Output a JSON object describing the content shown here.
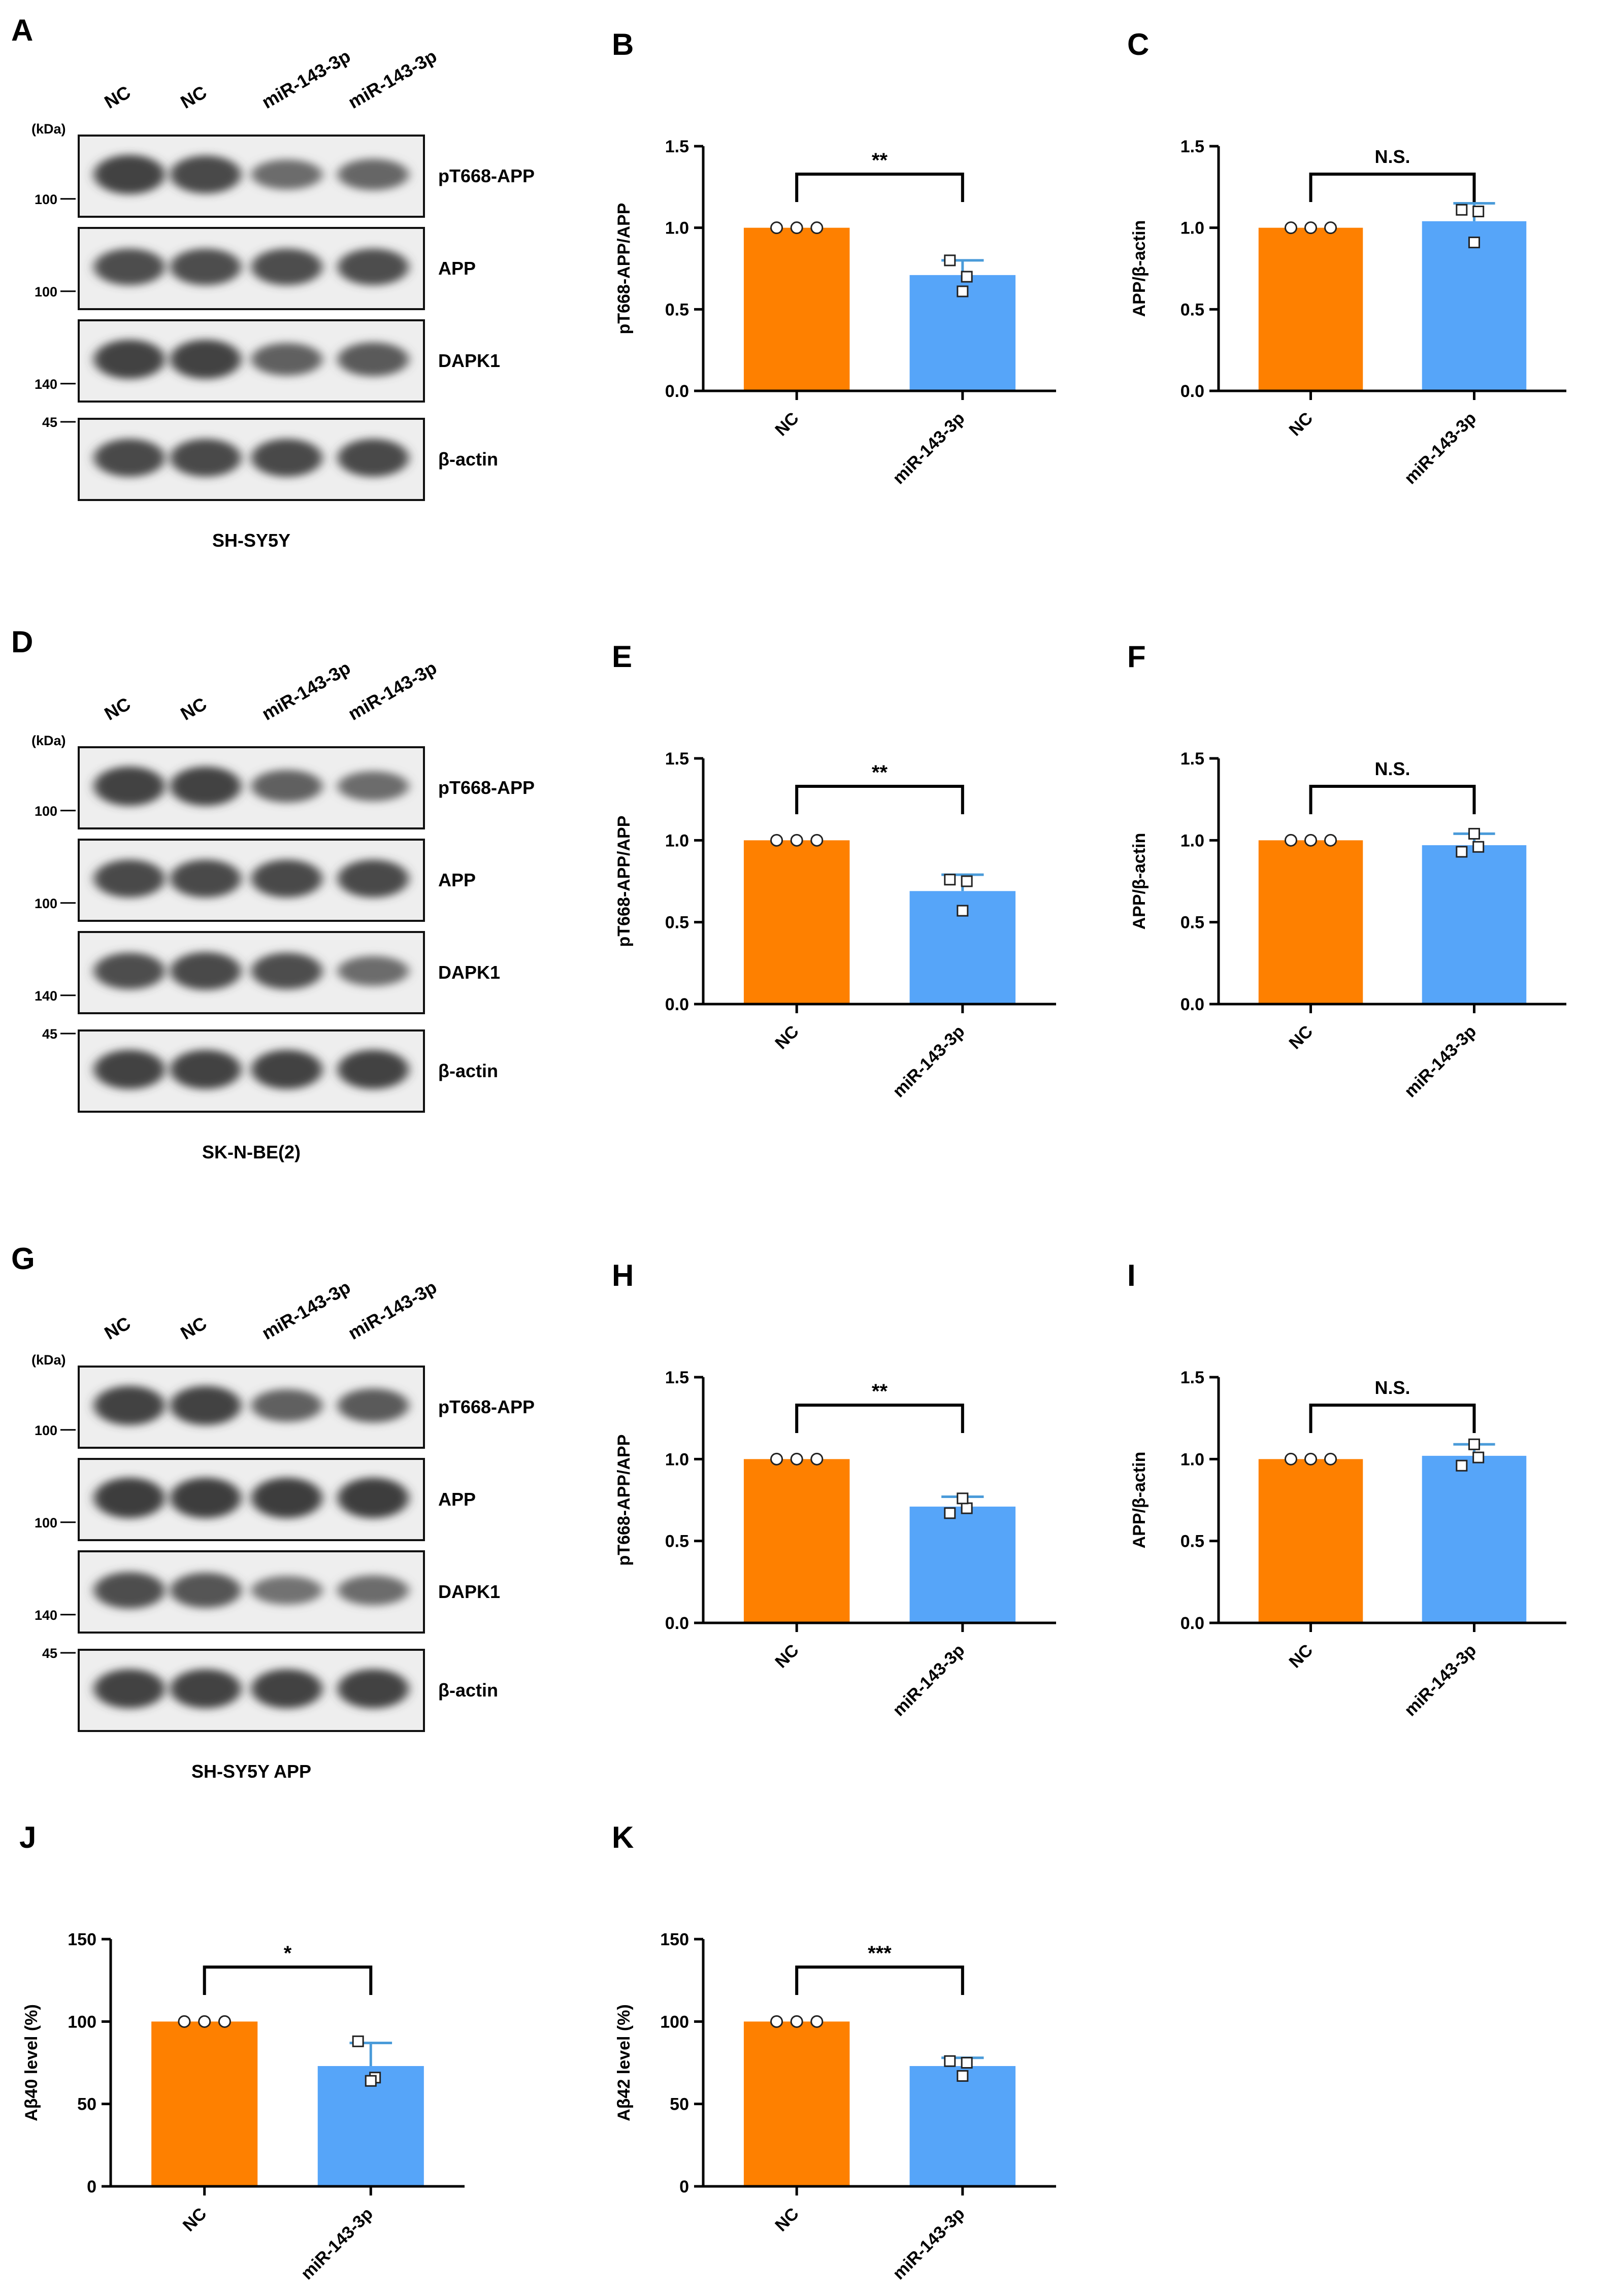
{
  "colors": {
    "nc": "#fe8000",
    "mir": "#56a5f9",
    "axis": "#000000",
    "err": "#4a9bd9",
    "band": "#1c1c1c"
  },
  "blots": [
    {
      "label": "A",
      "cell_line": "SH-SY5Y",
      "lanes": [
        "NC",
        "NC",
        "miR-143-3p",
        "miR-143-3p"
      ],
      "kda_unit": "(kDa)",
      "rows": [
        {
          "protein": "pT668-APP",
          "marker": "100",
          "intensity": [
            0.95,
            0.9,
            0.6,
            0.65
          ]
        },
        {
          "protein": "APP",
          "marker": "100",
          "intensity": [
            0.85,
            0.85,
            0.85,
            0.85
          ]
        },
        {
          "protein": "DAPK1",
          "marker": "140",
          "intensity": [
            0.95,
            0.95,
            0.7,
            0.75
          ]
        },
        {
          "protein": "β-actin",
          "marker": "45",
          "intensity": [
            0.9,
            0.9,
            0.9,
            0.9
          ]
        }
      ]
    },
    {
      "label": "D",
      "cell_line": "SK-N-BE(2)",
      "lanes": [
        "NC",
        "NC",
        "miR-143-3p",
        "miR-143-3p"
      ],
      "kda_unit": "(kDa)",
      "rows": [
        {
          "protein": "pT668-APP",
          "marker": "100",
          "intensity": [
            0.95,
            0.95,
            0.7,
            0.6
          ]
        },
        {
          "protein": "APP",
          "marker": "100",
          "intensity": [
            0.9,
            0.9,
            0.9,
            0.9
          ]
        },
        {
          "protein": "DAPK1",
          "marker": "140",
          "intensity": [
            0.85,
            0.9,
            0.85,
            0.6
          ]
        },
        {
          "protein": "β-actin",
          "marker": "45",
          "intensity": [
            0.95,
            0.95,
            0.95,
            0.95
          ]
        }
      ]
    },
    {
      "label": "G",
      "cell_line": "SH-SY5Y APP",
      "lanes": [
        "NC",
        "NC",
        "miR-143-3p",
        "miR-143-3p"
      ],
      "kda_unit": "(kDa)",
      "rows": [
        {
          "protein": "pT668-APP",
          "marker": "100",
          "intensity": [
            0.95,
            0.95,
            0.7,
            0.75
          ]
        },
        {
          "protein": "APP",
          "marker": "100",
          "intensity": [
            1.0,
            1.0,
            1.0,
            1.0
          ]
        },
        {
          "protein": "DAPK1",
          "marker": "140",
          "intensity": [
            0.85,
            0.8,
            0.55,
            0.6
          ]
        },
        {
          "protein": "β-actin",
          "marker": "45",
          "intensity": [
            0.95,
            0.95,
            0.95,
            0.95
          ]
        }
      ]
    }
  ],
  "chart_data": [
    {
      "panel": "B",
      "type": "bar",
      "categories": [
        "NC",
        "miR-143-3p"
      ],
      "values": [
        1.0,
        0.71
      ],
      "errors": [
        0,
        0.09
      ],
      "points": [
        [
          1.0,
          1.0,
          1.0
        ],
        [
          0.8,
          0.7,
          0.61
        ]
      ],
      "ylabel": "pT668-APP/APP",
      "ylim": [
        0,
        1.5
      ],
      "yticks": [
        "0.0",
        "0.5",
        "1.0",
        "1.5"
      ],
      "significance": "**"
    },
    {
      "panel": "C",
      "type": "bar",
      "categories": [
        "NC",
        "miR-143-3p"
      ],
      "values": [
        1.0,
        1.04
      ],
      "errors": [
        0,
        0.11
      ],
      "points": [
        [
          1.0,
          1.0,
          1.0
        ],
        [
          1.11,
          1.1,
          0.91
        ]
      ],
      "ylabel": "APP/β-actin",
      "ylim": [
        0,
        1.5
      ],
      "yticks": [
        "0.0",
        "0.5",
        "1.0",
        "1.5"
      ],
      "significance": "N.S."
    },
    {
      "panel": "E",
      "type": "bar",
      "categories": [
        "NC",
        "miR-143-3p"
      ],
      "values": [
        1.0,
        0.69
      ],
      "errors": [
        0,
        0.1
      ],
      "points": [
        [
          1.0,
          1.0,
          1.0
        ],
        [
          0.76,
          0.75,
          0.57
        ]
      ],
      "ylabel": "pT668-APP/APP",
      "ylim": [
        0,
        1.5
      ],
      "yticks": [
        "0.0",
        "0.5",
        "1.0",
        "1.5"
      ],
      "significance": "**"
    },
    {
      "panel": "F",
      "type": "bar",
      "categories": [
        "NC",
        "miR-143-3p"
      ],
      "values": [
        1.0,
        0.97
      ],
      "errors": [
        0,
        0.07
      ],
      "points": [
        [
          1.0,
          1.0,
          1.0
        ],
        [
          0.93,
          0.96,
          1.04
        ]
      ],
      "ylabel": "APP/β-actin",
      "ylim": [
        0,
        1.5
      ],
      "yticks": [
        "0.0",
        "0.5",
        "1.0",
        "1.5"
      ],
      "significance": "N.S."
    },
    {
      "panel": "H",
      "type": "bar",
      "categories": [
        "NC",
        "miR-143-3p"
      ],
      "values": [
        1.0,
        0.71
      ],
      "errors": [
        0,
        0.06
      ],
      "points": [
        [
          1.0,
          1.0,
          1.0
        ],
        [
          0.67,
          0.7,
          0.76
        ]
      ],
      "ylabel": "pT668-APP/APP",
      "ylim": [
        0,
        1.5
      ],
      "yticks": [
        "0.0",
        "0.5",
        "1.0",
        "1.5"
      ],
      "significance": "**"
    },
    {
      "panel": "I",
      "type": "bar",
      "categories": [
        "NC",
        "miR-143-3p"
      ],
      "values": [
        1.0,
        1.02
      ],
      "errors": [
        0,
        0.07
      ],
      "points": [
        [
          1.0,
          1.0,
          1.0
        ],
        [
          0.96,
          1.01,
          1.09
        ]
      ],
      "ylabel": "APP/β-actin",
      "ylim": [
        0,
        1.5
      ],
      "yticks": [
        "0.0",
        "0.5",
        "1.0",
        "1.5"
      ],
      "significance": "N.S."
    },
    {
      "panel": "J",
      "type": "bar",
      "categories": [
        "NC",
        "miR-143-3p"
      ],
      "values": [
        100,
        73
      ],
      "errors": [
        0,
        14
      ],
      "points": [
        [
          100,
          100,
          100
        ],
        [
          88,
          66,
          64
        ]
      ],
      "ylabel": "Aβ40 level (%)",
      "ylim": [
        0,
        150
      ],
      "yticks": [
        "0",
        "50",
        "100",
        "150"
      ],
      "significance": "*"
    },
    {
      "panel": "K",
      "type": "bar",
      "categories": [
        "NC",
        "miR-143-3p"
      ],
      "values": [
        100,
        73
      ],
      "errors": [
        0,
        5
      ],
      "points": [
        [
          100,
          100,
          100
        ],
        [
          76,
          75,
          67
        ]
      ],
      "ylabel": "Aβ42 level (%)",
      "ylim": [
        0,
        150
      ],
      "yticks": [
        "0",
        "50",
        "100",
        "150"
      ],
      "significance": "***"
    }
  ]
}
